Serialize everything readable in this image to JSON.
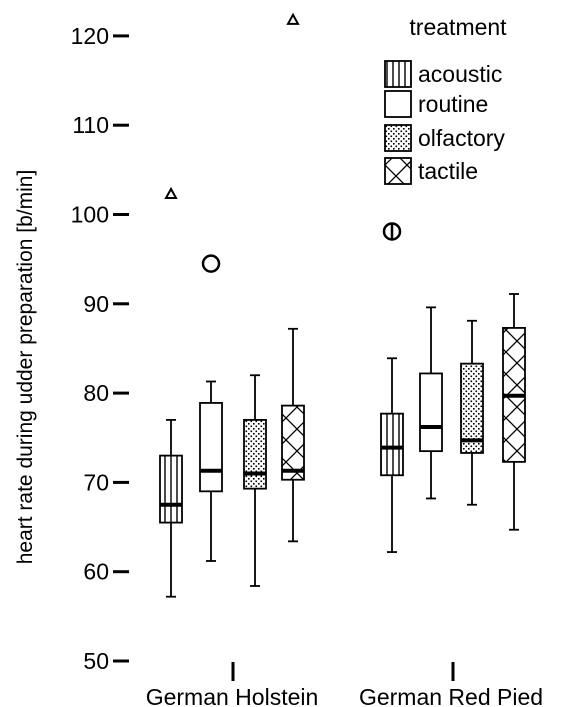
{
  "chart_data": {
    "type": "box",
    "ylabel": "heart rate during udder preparation [b/min]",
    "xlabel": "",
    "ylim": [
      50,
      122
    ],
    "yticks": [
      50,
      60,
      70,
      80,
      90,
      100,
      110,
      120
    ],
    "grid": false,
    "legend": {
      "title": "treatment",
      "placement": "top-right",
      "entries": [
        {
          "name": "acoustic",
          "pattern": "vertical-lines"
        },
        {
          "name": "routine",
          "pattern": "none"
        },
        {
          "name": "olfactory",
          "pattern": "dots"
        },
        {
          "name": "tactile",
          "pattern": "crosshatch"
        }
      ]
    },
    "categories": [
      "German Holstein",
      "German Red Pied"
    ],
    "series": [
      {
        "name": "acoustic",
        "pattern": "vertical-lines",
        "boxes": [
          {
            "whisker_low": 57.2,
            "q1": 65.5,
            "median": 67.5,
            "q3": 73.0,
            "whisker_high": 77.0,
            "outliers": [
              {
                "value": 102.3,
                "marker": "triangle"
              }
            ]
          },
          {
            "whisker_low": 62.2,
            "q1": 70.8,
            "median": 73.9,
            "q3": 77.7,
            "whisker_high": 83.9,
            "outliers": [
              {
                "value": 98.1,
                "marker": "circle-vline"
              }
            ]
          }
        ]
      },
      {
        "name": "routine",
        "pattern": "none",
        "boxes": [
          {
            "whisker_low": 61.2,
            "q1": 69.0,
            "median": 71.3,
            "q3": 78.9,
            "whisker_high": 81.3,
            "outliers": [
              {
                "value": 94.5,
                "marker": "circle"
              }
            ]
          },
          {
            "whisker_low": 68.2,
            "q1": 73.5,
            "median": 76.2,
            "q3": 82.2,
            "whisker_high": 89.6,
            "outliers": []
          }
        ]
      },
      {
        "name": "olfactory",
        "pattern": "dots",
        "boxes": [
          {
            "whisker_low": 58.4,
            "q1": 69.3,
            "median": 71.0,
            "q3": 77.0,
            "whisker_high": 82.0,
            "outliers": []
          },
          {
            "whisker_low": 67.5,
            "q1": 73.3,
            "median": 74.7,
            "q3": 83.3,
            "whisker_high": 88.1,
            "outliers": []
          }
        ]
      },
      {
        "name": "tactile",
        "pattern": "crosshatch",
        "boxes": [
          {
            "whisker_low": 63.4,
            "q1": 70.3,
            "median": 71.3,
            "q3": 78.6,
            "whisker_high": 87.2,
            "outliers": [
              {
                "value": 121.8,
                "marker": "triangle"
              }
            ]
          },
          {
            "whisker_low": 64.7,
            "q1": 72.3,
            "median": 79.7,
            "q3": 87.3,
            "whisker_high": 91.1,
            "outliers": []
          }
        ]
      }
    ]
  }
}
